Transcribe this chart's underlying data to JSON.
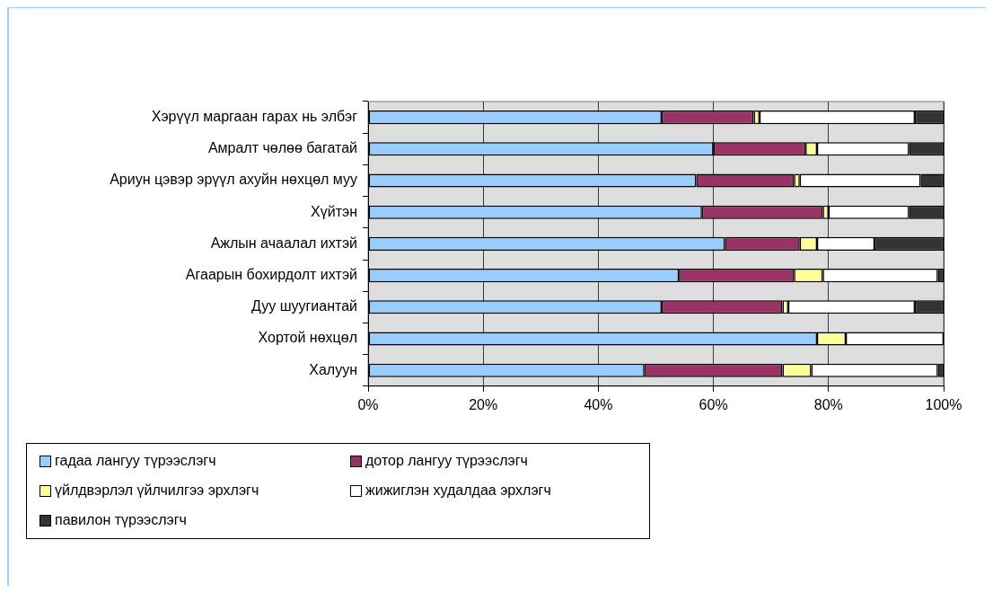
{
  "chart_data": {
    "type": "bar",
    "orientation": "horizontal",
    "stacked": true,
    "categories": [
      "Хэрүүл маргаан гарах нь элбэг",
      "Амралт чөлөө багатай",
      "Ариун цэвэр эрүүл ахуйн нөхцөл муу",
      "Хүйтэн",
      "Ажлын ачаалал ихтэй",
      "Агаарын бохирдолт ихтэй",
      "Дуу шуугиантай",
      "Хортой нөхцөл",
      "Халуун"
    ],
    "series": [
      {
        "name": "гадаа лангуу түрээслэгч",
        "color": "#99ccff",
        "values": [
          51,
          60,
          57,
          58,
          62,
          54,
          51,
          78,
          48
        ]
      },
      {
        "name": "дотор лангуу түрээслэгч",
        "color": "#993366",
        "values": [
          16,
          16,
          17,
          21,
          13,
          20,
          21,
          0,
          24
        ]
      },
      {
        "name": "үйлдвэрлэл үйлчилгээ эрхлэгч",
        "color": "#ffff99",
        "values": [
          1,
          2,
          1,
          1,
          3,
          5,
          1,
          5,
          5
        ]
      },
      {
        "name": "жижиглэн худалдаа эрхлэгч",
        "color": "#ffffff",
        "values": [
          27,
          16,
          21,
          14,
          10,
          20,
          22,
          17,
          22
        ]
      },
      {
        "name": "павилон түрээслэгч",
        "color": "#333333",
        "values": [
          5,
          6,
          4,
          6,
          12,
          1,
          5,
          0,
          1
        ]
      }
    ],
    "xlim": [
      0,
      100
    ],
    "xticks": [
      {
        "value": 0,
        "label": "0%"
      },
      {
        "value": 20,
        "label": "20%"
      },
      {
        "value": 40,
        "label": "40%"
      },
      {
        "value": 60,
        "label": "60%"
      },
      {
        "value": 80,
        "label": "80%"
      },
      {
        "value": 100,
        "label": "100%"
      }
    ],
    "grid": "x",
    "legend": "bottom"
  }
}
